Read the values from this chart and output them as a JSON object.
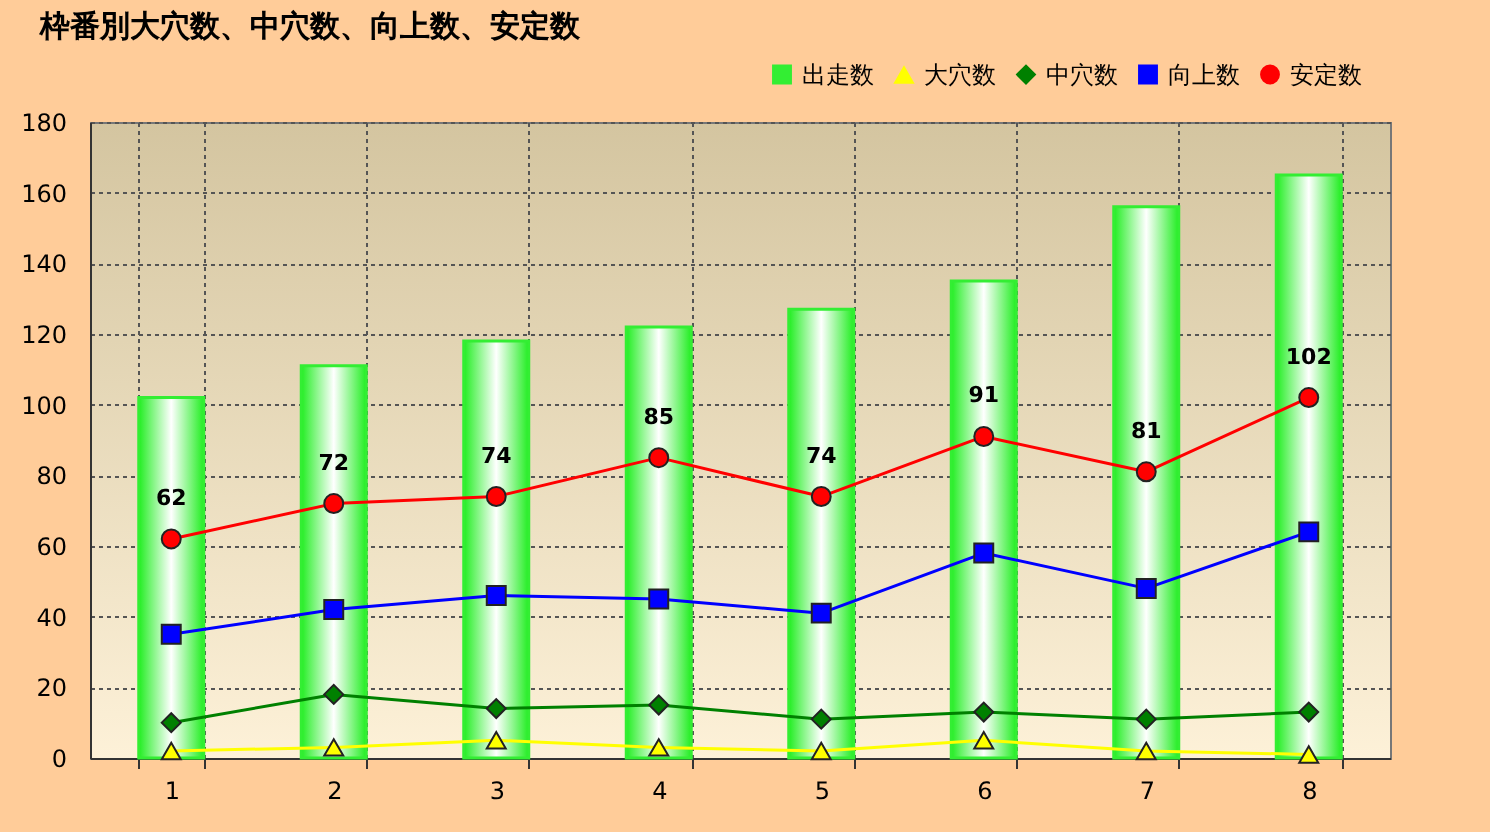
{
  "chart_data": {
    "type": "line",
    "title": "枠番別大穴数、中穴数、向上数、安定数",
    "categories": [
      "1",
      "2",
      "3",
      "4",
      "5",
      "6",
      "7",
      "8"
    ],
    "series": [
      {
        "name": "出走数",
        "type": "bar",
        "color": "#33ee33",
        "values": [
          102,
          111,
          118,
          122,
          127,
          135,
          156,
          165
        ]
      },
      {
        "name": "大穴数",
        "color": "#ffff00",
        "marker": "triangle",
        "values": [
          2,
          3,
          5,
          3,
          2,
          5,
          2,
          1
        ]
      },
      {
        "name": "中穴数",
        "color": "#008000",
        "marker": "diamond",
        "values": [
          10,
          18,
          14,
          15,
          11,
          13,
          11,
          13
        ]
      },
      {
        "name": "向上数",
        "color": "#0000ff",
        "marker": "square",
        "values": [
          35,
          42,
          46,
          45,
          41,
          58,
          48,
          64
        ]
      },
      {
        "name": "安定数",
        "color": "#ff0000",
        "marker": "circle",
        "values": [
          62,
          72,
          74,
          85,
          74,
          91,
          81,
          102
        ],
        "value_labels": [
          "62",
          "72",
          "74",
          "85",
          "74",
          "91",
          "81",
          "102"
        ]
      }
    ],
    "ylim": [
      0,
      180
    ],
    "yticks": [
      0,
      20,
      40,
      60,
      80,
      100,
      120,
      140,
      160,
      180
    ],
    "grid": true,
    "legend": "top right"
  }
}
